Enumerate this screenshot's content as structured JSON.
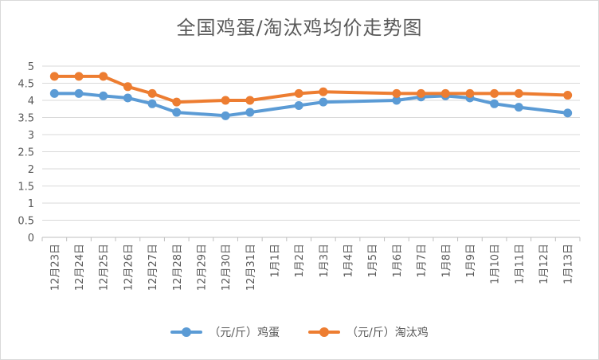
{
  "chart_data": {
    "type": "line",
    "title": "全国鸡蛋/淘汰鸡均价走势图",
    "categories": [
      "12月23日",
      "12月24日",
      "12月25日",
      "12月26日",
      "12月27日",
      "12月28日",
      "12月29日",
      "12月30日",
      "12月31日",
      "1月1日",
      "1月2日",
      "1月3日",
      "1月4日",
      "1月5日",
      "1月6日",
      "1月7日",
      "1月8日",
      "1月9日",
      "1月10日",
      "1月11日",
      "1月12日",
      "1月13日"
    ],
    "yticks": [
      "0",
      "0.5",
      "1",
      "1.5",
      "2",
      "2.5",
      "3",
      "3.5",
      "4",
      "4.5",
      "5"
    ],
    "ylim": [
      0,
      5
    ],
    "grid": true,
    "legend_position": "bottom",
    "series": [
      {
        "name": "（元/斤）鸡蛋",
        "color": "#5b9bd5",
        "values": [
          4.2,
          4.2,
          4.13,
          4.07,
          3.9,
          3.65,
          null,
          3.55,
          3.65,
          null,
          3.85,
          3.95,
          null,
          null,
          4.0,
          4.1,
          4.13,
          4.07,
          3.9,
          3.8,
          null,
          3.63
        ]
      },
      {
        "name": "（元/斤）淘汰鸡",
        "color": "#ed7d31",
        "values": [
          4.7,
          4.7,
          4.7,
          4.4,
          4.2,
          3.95,
          null,
          4.0,
          4.0,
          null,
          4.2,
          4.25,
          null,
          null,
          4.2,
          4.2,
          4.2,
          4.2,
          4.2,
          4.2,
          null,
          4.15
        ]
      }
    ]
  }
}
